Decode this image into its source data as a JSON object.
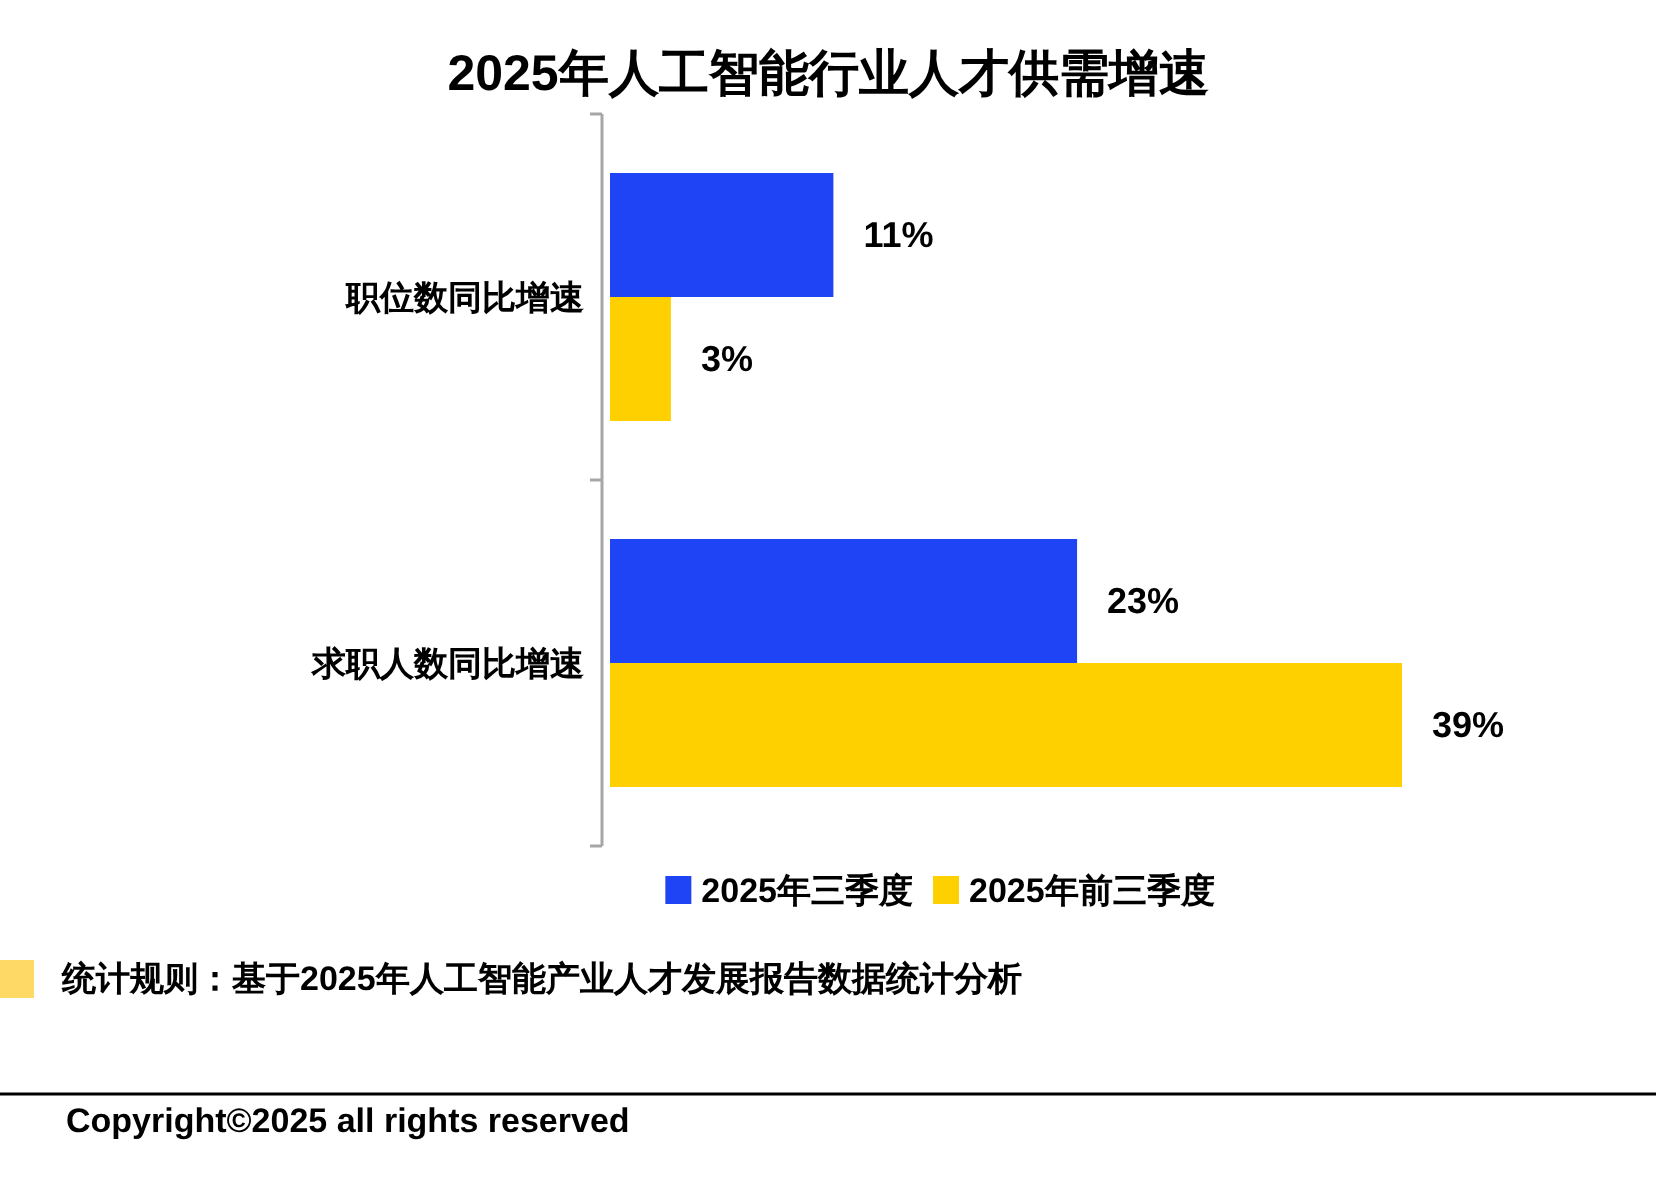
{
  "chart_data": {
    "type": "bar",
    "orientation": "horizontal",
    "title": "2025年人工智能行业人才供需增速",
    "categories": [
      "职位数同比增速",
      "求职人数同比增速"
    ],
    "series": [
      {
        "name": "2025年三季度",
        "color": "#1e44f6",
        "values": [
          11,
          23
        ],
        "value_labels": [
          "11%",
          "23%"
        ]
      },
      {
        "name": "2025年前三季度",
        "color": "#ffd000",
        "values": [
          3,
          39
        ],
        "value_labels": [
          "3%",
          "39%"
        ]
      }
    ],
    "legend": "bottom",
    "annotations": [
      "统计规则：基于2025年人工智能产业人才发展报告数据统计分析",
      "Copyright©2025 all rights reserved"
    ]
  }
}
